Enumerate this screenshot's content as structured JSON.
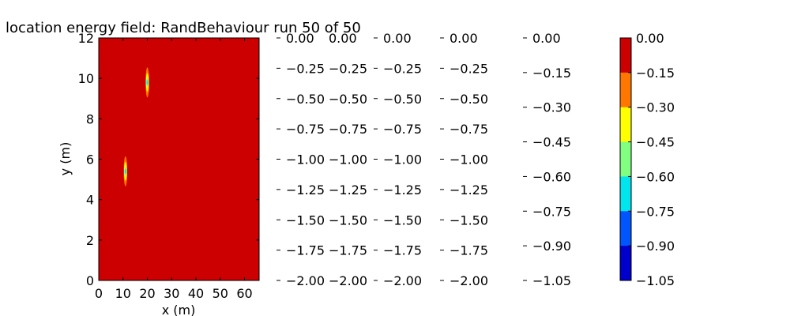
{
  "chart_data": {
    "type": "heatmap",
    "title": "location energy field: RandBehaviour run 50 of 50",
    "xlabel": "x (m)",
    "ylabel": "y (m)",
    "xlim": [
      0,
      66
    ],
    "ylim": [
      0,
      12
    ],
    "x_ticks": [
      "0",
      "10",
      "20",
      "30",
      "40",
      "50",
      "60"
    ],
    "y_ticks": [
      "0",
      "2",
      "4",
      "6",
      "8",
      "10",
      "12"
    ],
    "field_value": 0.0,
    "hotspots": [
      {
        "x": 20,
        "y": 9.8
      },
      {
        "x": 11,
        "y": 5.4
      }
    ],
    "stray_colorbar_tick_columns": [
      [
        "0.00",
        "−0.25",
        "−0.50",
        "−0.75",
        "−1.00",
        "−1.25",
        "−1.50",
        "−1.75",
        "−2.00"
      ],
      [
        "0.00",
        "−0.25",
        "−0.50",
        "−0.75",
        "−1.00",
        "−1.25",
        "−1.50",
        "−1.75",
        "−2.00"
      ],
      [
        "0.00",
        "−0.25",
        "−0.50",
        "−0.75",
        "−1.00",
        "−1.25",
        "−1.50",
        "−1.75",
        "−2.00"
      ],
      [
        "0.00",
        "−0.25",
        "−0.50",
        "−0.75",
        "−1.00",
        "−1.25",
        "−1.50",
        "−1.75",
        "−2.00"
      ],
      [
        "0.00",
        "−0.15",
        "−0.30",
        "−0.45",
        "−0.60",
        "−0.75",
        "−0.90",
        "−1.05"
      ]
    ],
    "colorbar": {
      "levels": [
        0.0,
        -0.15,
        -0.3,
        -0.45,
        -0.6,
        -0.75,
        -0.9,
        -1.05
      ],
      "tick_labels": [
        "0.00",
        "−0.15",
        "−0.30",
        "−0.45",
        "−0.60",
        "−0.75",
        "−0.90",
        "−1.05"
      ],
      "colors": [
        "#cc0000",
        "#ff7700",
        "#ffff00",
        "#80ff80",
        "#00e5ee",
        "#0055ff",
        "#0000cc"
      ]
    }
  }
}
